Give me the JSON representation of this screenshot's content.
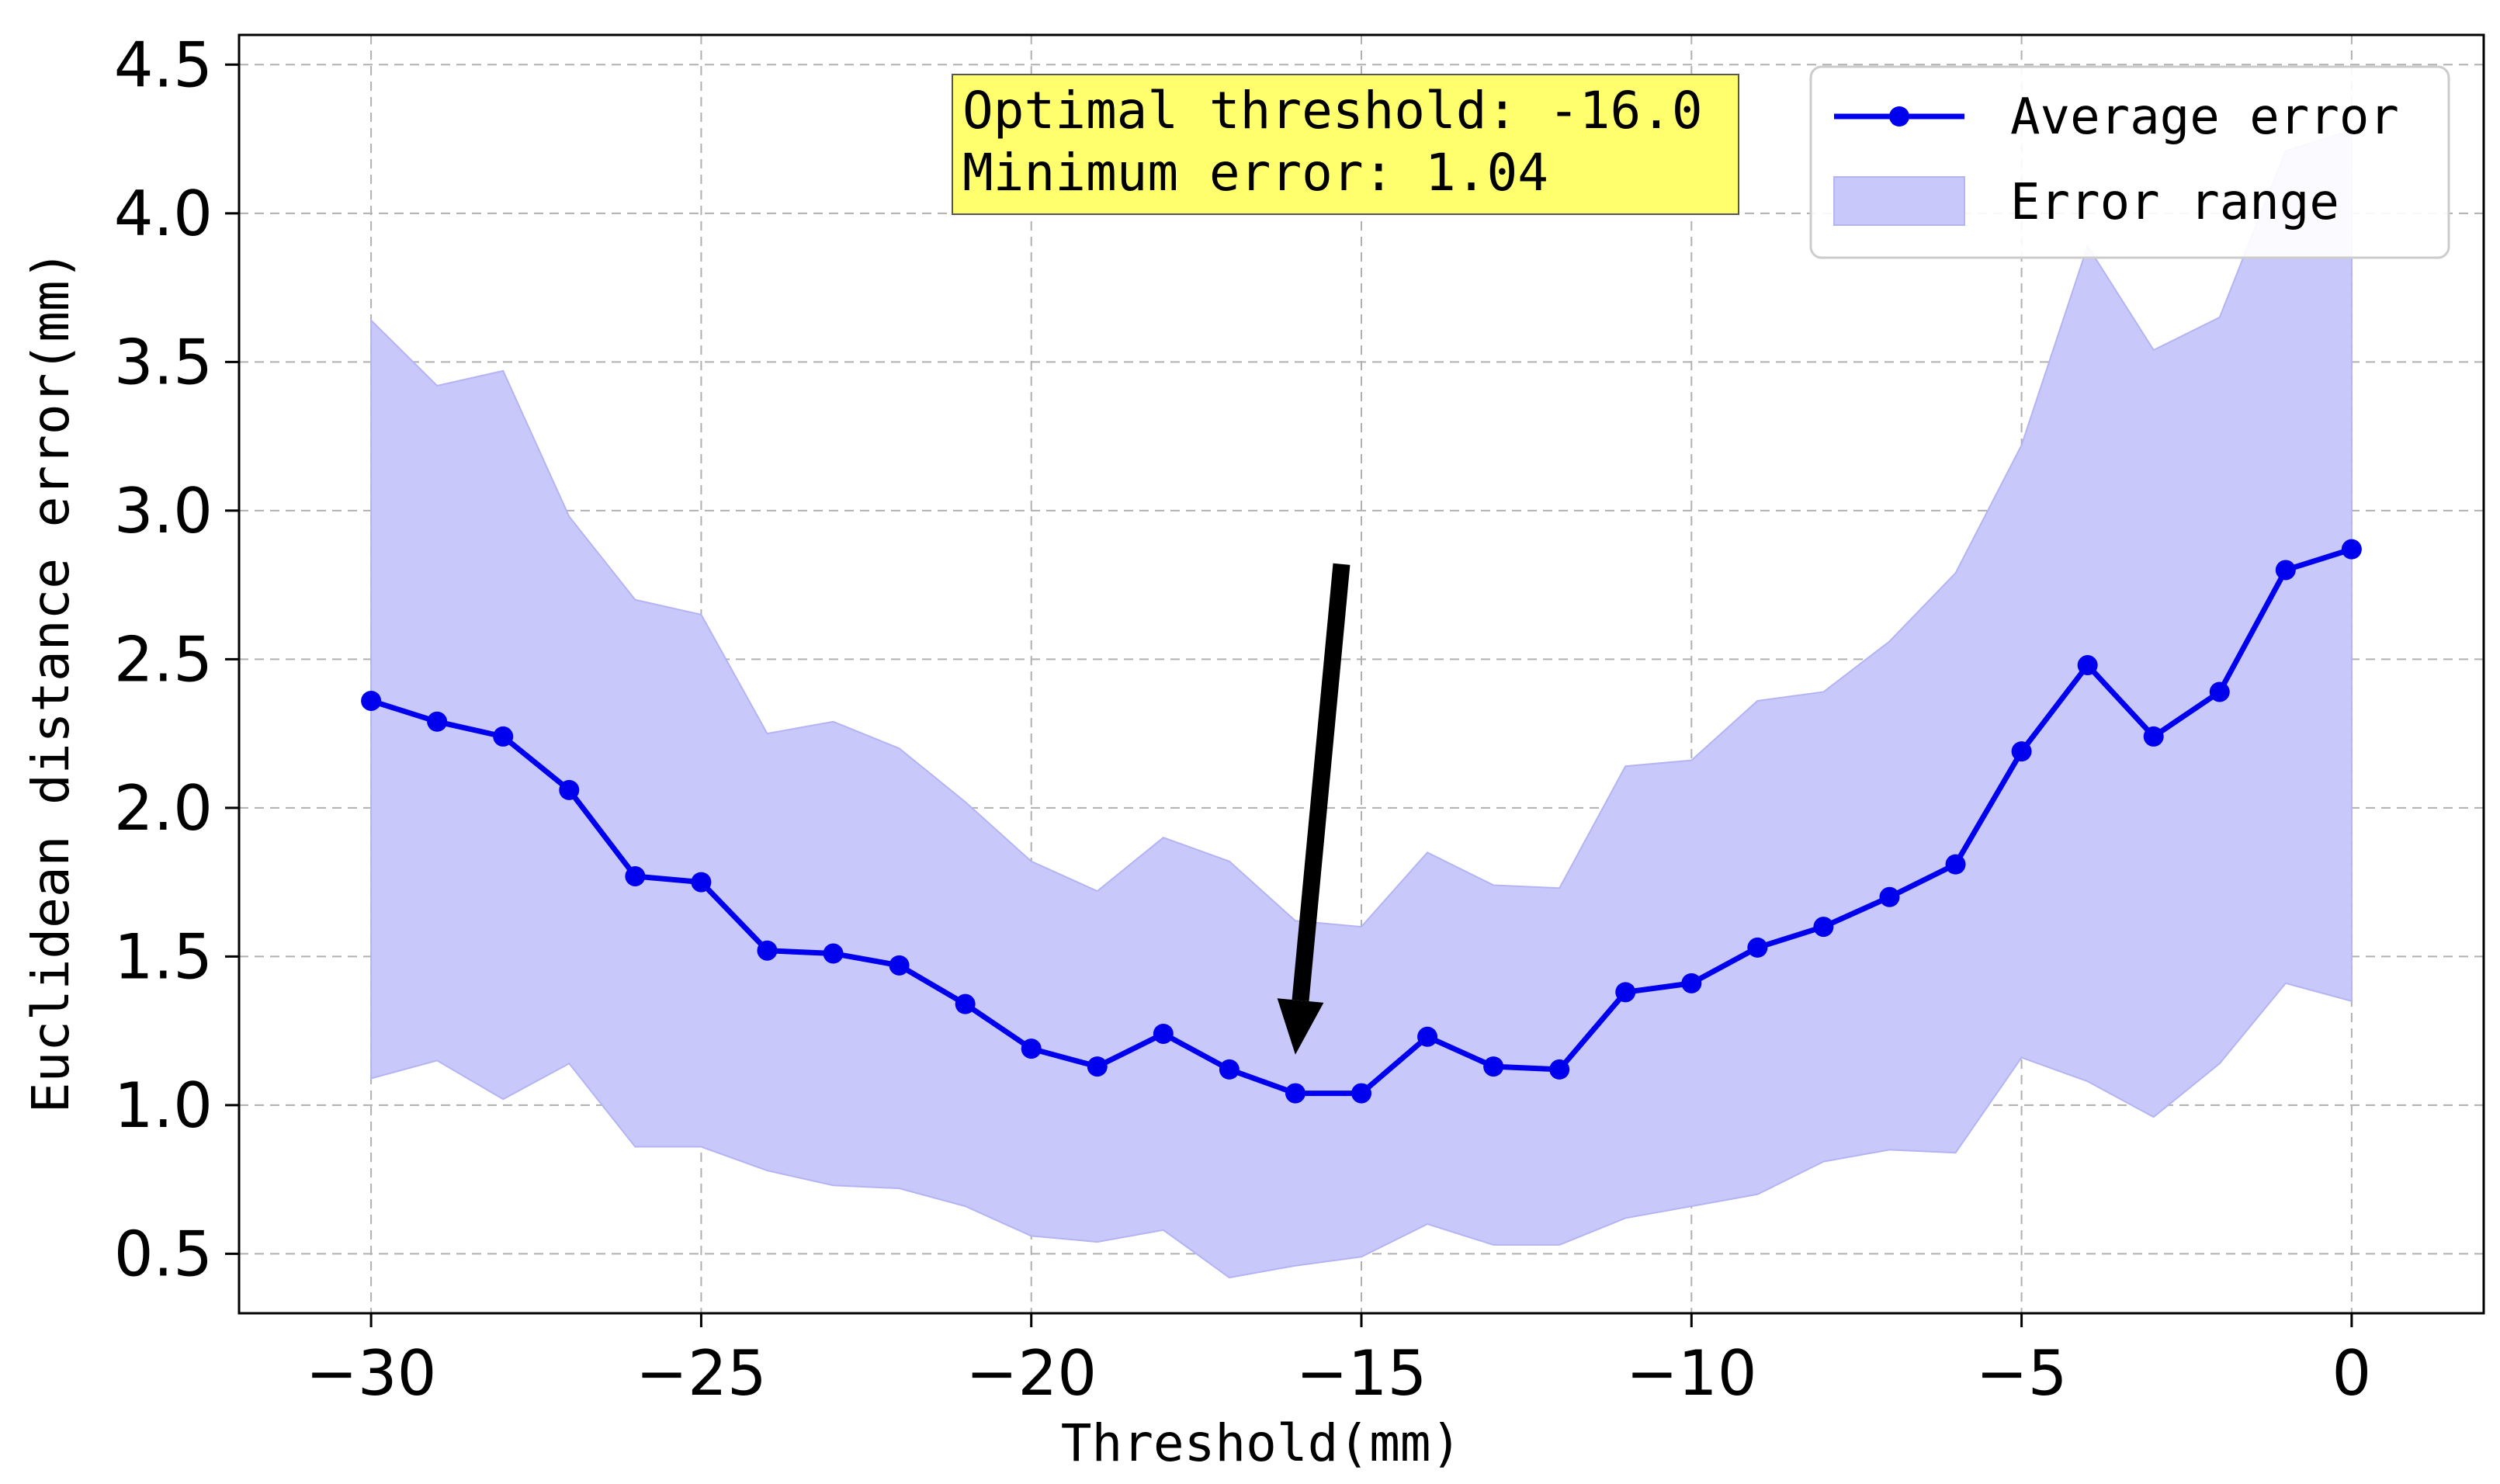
{
  "chart_data": {
    "type": "line",
    "title": "",
    "xlabel": "Threshold(mm)",
    "ylabel": "Euclidean distance error(mm)",
    "xlim": [
      -32,
      2
    ],
    "ylim": [
      0.3,
      4.6
    ],
    "grid": true,
    "xticks": [
      -30,
      -25,
      -20,
      -15,
      -10,
      -5,
      0
    ],
    "xtick_labels": [
      "−30",
      "−25",
      "−20",
      "−15",
      "−10",
      "−5",
      "0"
    ],
    "yticks": [
      0.5,
      1.0,
      1.5,
      2.0,
      2.5,
      3.0,
      3.5,
      4.0,
      4.5
    ],
    "ytick_labels": [
      "0.5",
      "1.0",
      "1.5",
      "2.0",
      "2.5",
      "3.0",
      "3.5",
      "4.0",
      "4.5"
    ],
    "x": [
      -30,
      -29,
      -28,
      -27,
      -26,
      -25,
      -24,
      -23,
      -22,
      -21,
      -20,
      -19,
      -18,
      -17,
      -16,
      -15,
      -14,
      -13,
      -12,
      -11,
      -10,
      -9,
      -8,
      -7,
      -6,
      -5,
      -4,
      -3,
      -2,
      -1,
      0
    ],
    "series": [
      {
        "name": "Average error",
        "color": "#0000ee",
        "values": [
          2.36,
          2.29,
          2.24,
          2.06,
          1.77,
          1.75,
          1.52,
          1.51,
          1.47,
          1.34,
          1.19,
          1.13,
          1.24,
          1.12,
          1.04,
          1.04,
          1.23,
          1.13,
          1.12,
          1.38,
          1.41,
          1.53,
          1.6,
          1.7,
          1.81,
          2.19,
          2.48,
          2.24,
          2.39,
          2.8,
          2.87
        ]
      }
    ],
    "band": {
      "name": "Error range",
      "color": "#c8c8fa",
      "edge_color": "#b4b4f5",
      "upper": [
        3.64,
        3.42,
        3.47,
        2.98,
        2.7,
        2.65,
        2.25,
        2.29,
        2.2,
        2.02,
        1.82,
        1.72,
        1.9,
        1.82,
        1.62,
        1.6,
        1.85,
        1.74,
        1.73,
        2.14,
        2.16,
        2.36,
        2.39,
        2.56,
        2.79,
        3.22,
        3.89,
        3.54,
        3.65,
        4.21,
        4.28
      ],
      "lower": [
        1.09,
        1.15,
        1.02,
        1.14,
        0.86,
        0.86,
        0.78,
        0.73,
        0.72,
        0.66,
        0.56,
        0.54,
        0.58,
        0.42,
        0.46,
        0.49,
        0.6,
        0.53,
        0.53,
        0.62,
        0.66,
        0.7,
        0.81,
        0.85,
        0.84,
        1.16,
        1.08,
        0.96,
        1.14,
        1.41,
        1.35
      ]
    },
    "annotation": {
      "lines": [
        "Optimal threshold: -16.0",
        "Minimum error: 1.04"
      ],
      "box_color": "#ffff6e",
      "arrow_target": [
        -16,
        1.17
      ],
      "arrow_tail": [
        -15.3,
        2.82
      ]
    },
    "legend": {
      "position": "top-right",
      "entries": [
        "Average error",
        "Error range"
      ]
    }
  }
}
